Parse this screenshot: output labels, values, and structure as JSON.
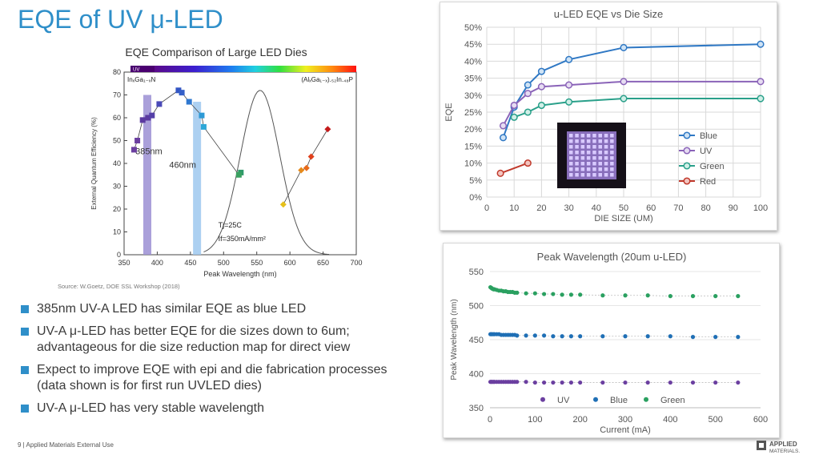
{
  "slide": {
    "title": "EQE of UV μ-LED",
    "source": "Source: W.Goetz, DOE SSL Workshop (2018)",
    "footer": "9   |  Applied Materials External Use",
    "logo_line1": "APPLIED",
    "logo_line2": "MATERIALS.",
    "accent_color": "#2f8fc9",
    "bullets": [
      "385nm UV-A LED has similar EQE as blue LED",
      "UV-A μ-LED has better EQE for die sizes down to 6um;\nadvantageous for die size reduction map for direct view",
      "Expect to improve EQE with epi and die fabrication processes\n(data shown is for first run UVLED dies)",
      "UV-A μ-LED has very stable wavelength"
    ]
  },
  "chart_data": [
    {
      "type": "scatter",
      "title": "EQE Comparison of Large LED Dies",
      "xlabel": "Peak Wavelength (nm)",
      "ylabel": "External Quantum Efficiency (%)",
      "xlim": [
        350,
        700
      ],
      "ylim": [
        0,
        80
      ],
      "xticks": [
        "350",
        "400",
        "450",
        "500",
        "550",
        "600",
        "650",
        "700"
      ],
      "yticks": [
        "0",
        "10",
        "20",
        "30",
        "40",
        "50",
        "60",
        "70",
        "80"
      ],
      "spectrum_label": "UV",
      "left_material_label": "InₓGa₁₋ₓN",
      "right_material_label": "(AlₓGa₁₋ₓ).₅₂In.₄₈P",
      "conditions": [
        "Tj=25C",
        "If=350mA/mm²"
      ],
      "annotations": [
        "385nm",
        "460nm"
      ],
      "bars": [
        {
          "label": "385nm",
          "x": 385,
          "value": 70,
          "color": "#9b8fd4"
        },
        {
          "label": "460nm",
          "x": 460,
          "value": 67,
          "color": "#9ec8ef"
        }
      ],
      "ingan_points": [
        {
          "x": 365,
          "y": 46,
          "color": "#6b3fa0"
        },
        {
          "x": 370,
          "y": 50,
          "color": "#6b3fa0"
        },
        {
          "x": 378,
          "y": 59,
          "color": "#5b3aa0"
        },
        {
          "x": 386,
          "y": 60,
          "color": "#5b3aa0"
        },
        {
          "x": 392,
          "y": 61,
          "color": "#5540a8"
        },
        {
          "x": 403,
          "y": 66,
          "color": "#4a4ab8"
        },
        {
          "x": 432,
          "y": 72,
          "color": "#3355c4"
        },
        {
          "x": 437,
          "y": 71,
          "color": "#3560c8"
        },
        {
          "x": 448,
          "y": 67,
          "color": "#2f78d0"
        },
        {
          "x": 467,
          "y": 61,
          "color": "#2e9ad6"
        },
        {
          "x": 470,
          "y": 56,
          "color": "#2ea8d8"
        },
        {
          "x": 526,
          "y": 36,
          "color": "#2e9a6a"
        },
        {
          "x": 523,
          "y": 35,
          "color": "#3aa060"
        }
      ],
      "algainp_points": [
        {
          "x": 590,
          "y": 22,
          "color": "#e6c01a"
        },
        {
          "x": 617,
          "y": 37,
          "color": "#e78a1a"
        },
        {
          "x": 625,
          "y": 38,
          "color": "#e86a1a"
        },
        {
          "x": 632,
          "y": 43,
          "color": "#e0401c"
        },
        {
          "x": 657,
          "y": 55,
          "color": "#c41a1a"
        }
      ],
      "eye_response": {
        "peak_x": 555,
        "peak_y": 72
      }
    },
    {
      "type": "line",
      "title": "u-LED EQE vs Die Size",
      "xlabel": "DIE SIZE (UM)",
      "ylabel": "EQE",
      "xlim": [
        0,
        100
      ],
      "ylim": [
        0,
        50
      ],
      "xticks": [
        "0",
        "10",
        "20",
        "30",
        "40",
        "50",
        "60",
        "70",
        "80",
        "90",
        "100"
      ],
      "yticks": [
        "0%",
        "5%",
        "10%",
        "15%",
        "20%",
        "25%",
        "30%",
        "35%",
        "40%",
        "45%",
        "50%"
      ],
      "series": [
        {
          "name": "Blue",
          "color": "#2f78c4",
          "fill": "#cfe3f5",
          "x": [
            6,
            10,
            15,
            20,
            30,
            50,
            100
          ],
          "y": [
            17.5,
            26.5,
            33,
            37,
            40.5,
            44,
            45
          ]
        },
        {
          "name": "UV",
          "color": "#8a63b8",
          "fill": "#e6dcf2",
          "x": [
            6,
            10,
            15,
            20,
            30,
            50,
            100
          ],
          "y": [
            21,
            27,
            30.5,
            32.5,
            33,
            34,
            34
          ]
        },
        {
          "name": "Green",
          "color": "#2aa08a",
          "fill": "#d0efe7",
          "x": [
            10,
            15,
            20,
            30,
            50,
            100
          ],
          "y": [
            23.5,
            25,
            27,
            28,
            29,
            29
          ]
        },
        {
          "name": "Red",
          "color": "#c0392b",
          "fill": "#f3c5c0",
          "x": [
            5,
            15
          ],
          "y": [
            7,
            10
          ]
        }
      ]
    },
    {
      "type": "scatter",
      "title": "Peak Wavelength (20um u-LED)",
      "xlabel": "Current (mA)",
      "ylabel": "Peak Wavelength (nm)",
      "xlim": [
        0,
        600
      ],
      "ylim": [
        350,
        550
      ],
      "xticks": [
        "0",
        "100",
        "200",
        "300",
        "400",
        "500",
        "600"
      ],
      "yticks": [
        "350",
        "400",
        "450",
        "500",
        "550"
      ],
      "series": [
        {
          "name": "UV",
          "color": "#6b3fa0",
          "x": [
            1,
            3,
            5,
            8,
            10,
            15,
            20,
            25,
            30,
            35,
            40,
            45,
            50,
            55,
            60,
            80,
            100,
            120,
            140,
            160,
            180,
            200,
            250,
            300,
            350,
            400,
            450,
            500,
            550
          ],
          "y": [
            388,
            388,
            388,
            388,
            388,
            388,
            388,
            388,
            388,
            388,
            388,
            388,
            388,
            388,
            388,
            388,
            387,
            387,
            387,
            387,
            387,
            387,
            387,
            387,
            387,
            387,
            387,
            387,
            387
          ]
        },
        {
          "name": "Blue",
          "color": "#1f6fb5",
          "x": [
            1,
            3,
            5,
            8,
            10,
            15,
            20,
            25,
            30,
            35,
            40,
            45,
            50,
            55,
            60,
            80,
            100,
            120,
            140,
            160,
            180,
            200,
            250,
            300,
            350,
            400,
            450,
            500,
            550
          ],
          "y": [
            458,
            458,
            458,
            458,
            458,
            458,
            458,
            457,
            457,
            457,
            457,
            457,
            457,
            457,
            456,
            456,
            456,
            456,
            455,
            455,
            455,
            455,
            455,
            455,
            455,
            455,
            454,
            454,
            454
          ]
        },
        {
          "name": "Green",
          "color": "#2aa060",
          "x": [
            1,
            3,
            5,
            8,
            10,
            15,
            20,
            25,
            30,
            35,
            40,
            45,
            50,
            55,
            60,
            80,
            100,
            120,
            140,
            160,
            180,
            200,
            250,
            300,
            350,
            400,
            450,
            500,
            550
          ],
          "y": [
            527,
            526,
            525,
            524,
            524,
            523,
            522,
            522,
            521,
            521,
            520,
            520,
            520,
            519,
            519,
            518,
            518,
            517,
            517,
            516,
            516,
            516,
            515,
            515,
            515,
            514,
            514,
            514,
            514
          ]
        }
      ]
    }
  ]
}
